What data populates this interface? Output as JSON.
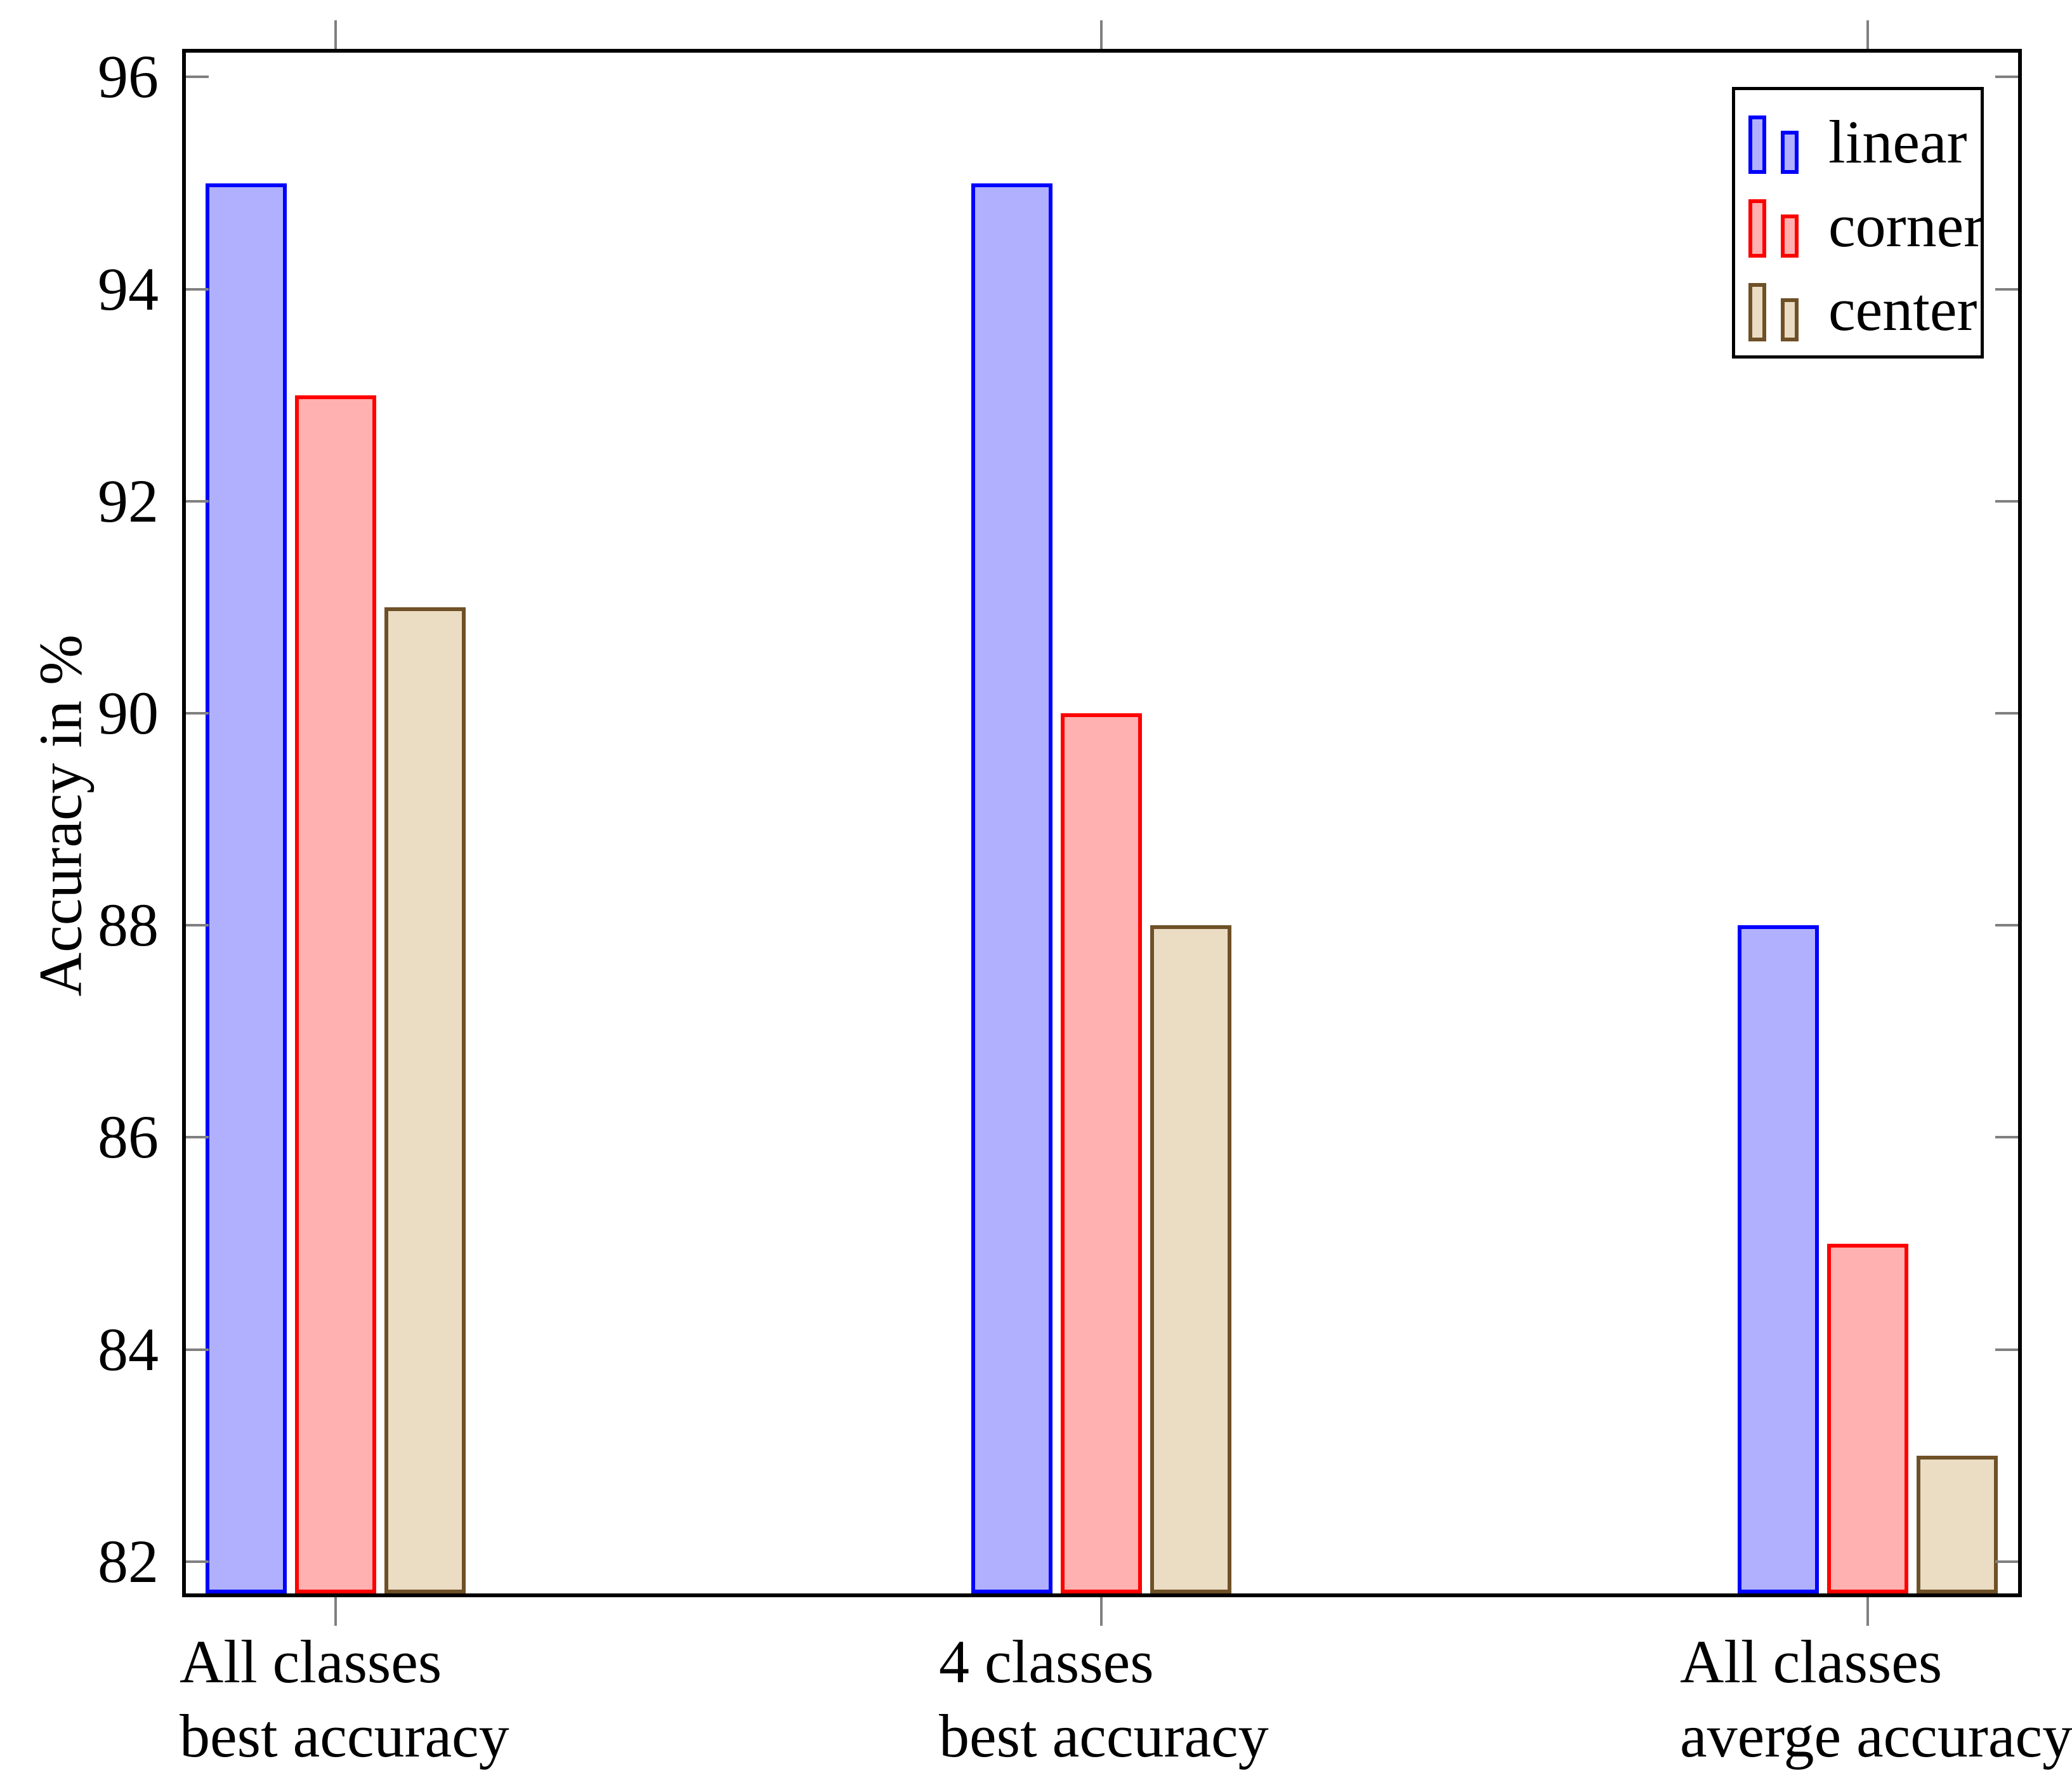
{
  "figure": {
    "ylabel": "Accuracy in %"
  },
  "chart_data": {
    "type": "bar",
    "title": "",
    "xlabel": "",
    "ylabel": "Accuracy in %",
    "ylim": [
      81.7,
      96.23
    ],
    "yticks": [
      82,
      84,
      86,
      88,
      90,
      92,
      94,
      96
    ],
    "grid": false,
    "legend_position": "top-right",
    "categories": [
      [
        "All classes",
        "best accuracy"
      ],
      [
        "4 classes",
        "best accuracy"
      ],
      [
        "All classes",
        "averge accuracy"
      ]
    ],
    "series": [
      {
        "name": "linear",
        "values": [
          95,
          95,
          88
        ],
        "fill": "#B0B0FF",
        "stroke": "#0000FF"
      },
      {
        "name": "corner",
        "values": [
          93,
          90,
          85
        ],
        "fill": "#FFB0B0",
        "stroke": "#FF0000"
      },
      {
        "name": "center",
        "values": [
          91,
          88,
          83
        ],
        "fill": "#EBDCC4",
        "stroke": "#6F5128"
      }
    ]
  }
}
